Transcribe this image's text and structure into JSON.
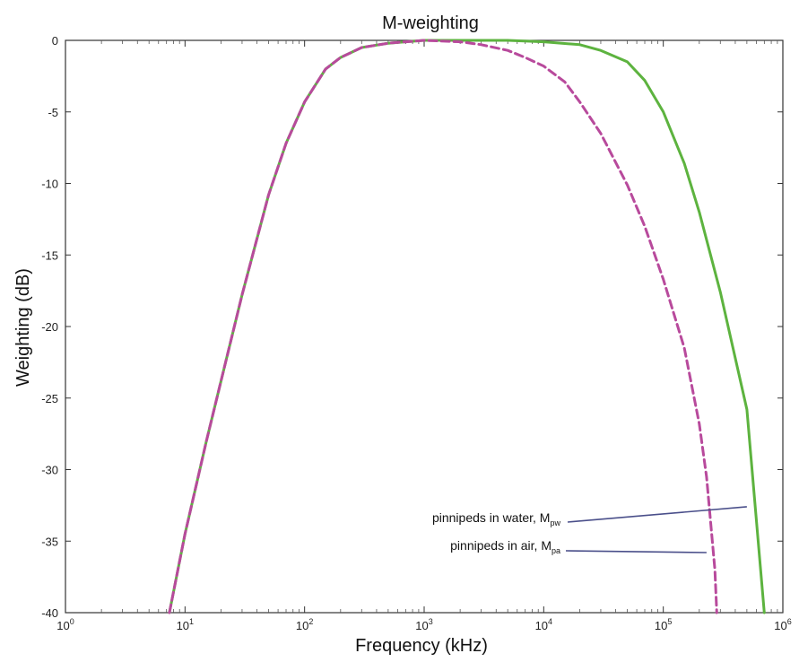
{
  "chart_data": {
    "type": "line",
    "title": "M-weighting",
    "xlabel": "Frequency (kHz)",
    "ylabel": "Weighting (dB)",
    "x_scale": "log",
    "xlim": [
      1,
      1000000
    ],
    "ylim": [
      -40,
      0
    ],
    "x_ticks": [
      {
        "base": "10",
        "exp": "0"
      },
      {
        "base": "10",
        "exp": "1"
      },
      {
        "base": "10",
        "exp": "2"
      },
      {
        "base": "10",
        "exp": "3"
      },
      {
        "base": "10",
        "exp": "4"
      },
      {
        "base": "10",
        "exp": "5"
      },
      {
        "base": "10",
        "exp": "6"
      }
    ],
    "y_ticks": [
      "0",
      "-5",
      "-10",
      "-15",
      "-20",
      "-25",
      "-30",
      "-35",
      "-40"
    ],
    "grid": false,
    "series": [
      {
        "color": "#5db33f",
        "style": "solid",
        "x": [
          7.4,
          10,
          15,
          20,
          30,
          50,
          70,
          100,
          150,
          200,
          300,
          500,
          700,
          1000,
          2000,
          5000,
          10000,
          20000,
          30000,
          50000,
          70000,
          100000,
          150000,
          200000,
          300000,
          500000,
          700000
        ],
        "values": [
          -40,
          -34.5,
          -28.1,
          -23.8,
          -17.8,
          -10.8,
          -7.2,
          -4.3,
          -2.0,
          -1.2,
          -0.5,
          -0.2,
          -0.1,
          0,
          0,
          0,
          -0.1,
          -0.3,
          -0.7,
          -1.5,
          -2.8,
          -5.0,
          -8.6,
          -12.0,
          -17.6,
          -25.8,
          -40
        ]
      },
      {
        "color": "#b84a9c",
        "style": "dashed",
        "x": [
          7.4,
          10,
          15,
          20,
          30,
          50,
          70,
          100,
          150,
          200,
          300,
          500,
          700,
          1000,
          2000,
          3000,
          5000,
          7000,
          10000,
          15000,
          20000,
          30000,
          50000,
          70000,
          100000,
          150000,
          200000,
          230000,
          270000,
          280000
        ],
        "values": [
          -40,
          -34.5,
          -28.1,
          -23.8,
          -17.8,
          -10.8,
          -7.2,
          -4.3,
          -2.0,
          -1.2,
          -0.5,
          -0.2,
          -0.1,
          0,
          -0.1,
          -0.3,
          -0.7,
          -1.2,
          -1.8,
          -2.9,
          -4.3,
          -6.5,
          -10.1,
          -13.0,
          -16.7,
          -21.5,
          -26.8,
          -30.5,
          -37.0,
          -40
        ]
      }
    ],
    "annotations": [
      {
        "text": "pinnipeds in water, M",
        "sub": "pw",
        "target_x": 500000,
        "target_y": -32.6
      },
      {
        "text": "pinnipeds in air, M",
        "sub": "pa",
        "target_x": 230000,
        "target_y": -35.8
      }
    ]
  }
}
